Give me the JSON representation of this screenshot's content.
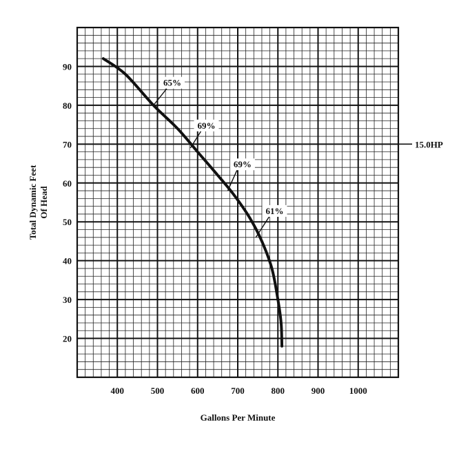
{
  "chart_data": {
    "type": "line",
    "title": "",
    "xlabel": "Gallons Per Minute",
    "ylabel_lines": [
      "Total Dynamic Feet",
      "Of Head"
    ],
    "xlim": [
      300,
      1100
    ],
    "ylim": [
      10,
      100
    ],
    "x_ticks": [
      400,
      500,
      600,
      700,
      800,
      900,
      1000
    ],
    "y_ticks": [
      20,
      30,
      40,
      50,
      60,
      70,
      80,
      90
    ],
    "grid": true,
    "minor_x_step": 20,
    "minor_y_step": 2,
    "series": [
      {
        "name": "",
        "x": [
          365,
          420,
          490,
          550,
          600,
          650,
          690,
          730,
          760,
          785,
          800,
          808,
          810
        ],
        "y": [
          92,
          88,
          80,
          74,
          68,
          62,
          57,
          51,
          45,
          38,
          30,
          24,
          18
        ]
      }
    ],
    "annotations": [
      {
        "text": "65%",
        "x": 490,
        "y": 80,
        "label_x": 530,
        "label_y": 85
      },
      {
        "text": "69%",
        "x": 582,
        "y": 69,
        "label_x": 615,
        "label_y": 74
      },
      {
        "text": "69%",
        "x": 675,
        "y": 58,
        "label_x": 705,
        "label_y": 64
      },
      {
        "text": "61%",
        "x": 745,
        "y": 46,
        "label_x": 785,
        "label_y": 52
      }
    ],
    "side_label": {
      "text": "15.0HP",
      "y": 70
    }
  }
}
